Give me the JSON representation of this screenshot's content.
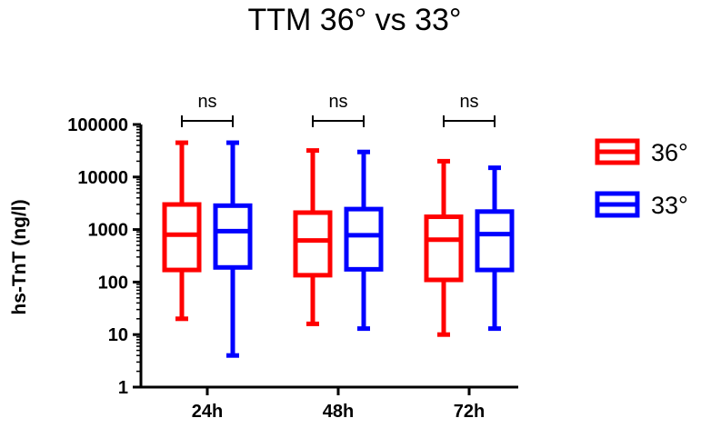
{
  "chart_data": {
    "type": "boxplot",
    "title": "TTM 36° vs 33°",
    "xlabel": "",
    "ylabel": "hs-TnT (ng/l)",
    "yscale": "log",
    "ylim": [
      1,
      100000
    ],
    "yticks": [
      1,
      10,
      100,
      1000,
      10000,
      100000
    ],
    "categories": [
      "24h",
      "48h",
      "72h"
    ],
    "legend_position": "right",
    "significance": [
      "ns",
      "ns",
      "ns"
    ],
    "series": [
      {
        "name": "36°",
        "color": "#ff0000",
        "boxes": [
          {
            "min": 20,
            "q1": 170,
            "median": 800,
            "q3": 3000,
            "max": 45000
          },
          {
            "min": 16,
            "q1": 135,
            "median": 620,
            "q3": 2100,
            "max": 32000
          },
          {
            "min": 10,
            "q1": 110,
            "median": 640,
            "q3": 1750,
            "max": 20000
          }
        ]
      },
      {
        "name": "33°",
        "color": "#0000ff",
        "boxes": [
          {
            "min": 4,
            "q1": 190,
            "median": 930,
            "q3": 2850,
            "max": 45000
          },
          {
            "min": 13,
            "q1": 175,
            "median": 780,
            "q3": 2450,
            "max": 30000
          },
          {
            "min": 13,
            "q1": 170,
            "median": 820,
            "q3": 2200,
            "max": 15000
          }
        ]
      }
    ]
  }
}
